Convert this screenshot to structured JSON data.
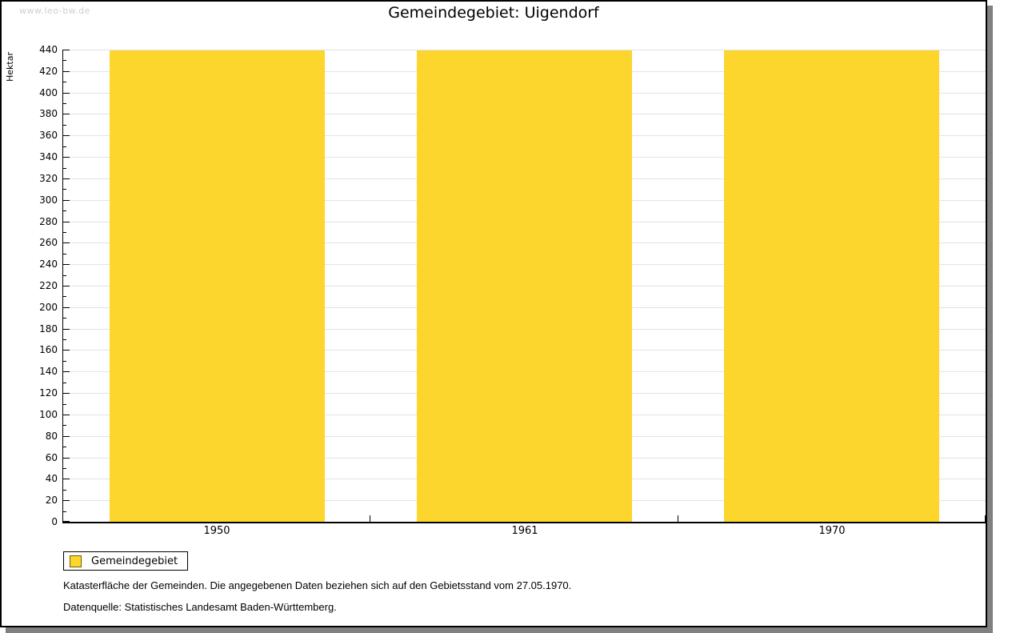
{
  "watermark": "www.leo-bw.de",
  "title": "Gemeindegebiet: Uigendorf",
  "chart_data": {
    "type": "bar",
    "title": "Gemeindegebiet: Uigendorf",
    "categories": [
      "1950",
      "1961",
      "1970"
    ],
    "series": [
      {
        "name": "Gemeindegebiet",
        "values": [
          439,
          439,
          439
        ]
      }
    ],
    "xlabel": "",
    "ylabel": "Hektar",
    "ylim": [
      0,
      440
    ],
    "ytick_step": 20,
    "yminor_step": 10,
    "grid": true,
    "legend_position": "bottom-left",
    "bar_color": "#fcd52d"
  },
  "legend": {
    "items": [
      {
        "label": "Gemeindegebiet",
        "color": "#fcd52d"
      }
    ]
  },
  "footnotes": [
    "Katasterfläche der Gemeinden. Die angegebenen Daten beziehen sich auf den Gebietsstand vom 27.05.1970.",
    "Datenquelle: Statistisches Landesamt Baden-Württemberg."
  ],
  "colors": {
    "bar": "#fcd52d",
    "gridline": "#e3e3e3",
    "axis": "#000000",
    "shadow": "#808080",
    "watermark": "#cfcfcf",
    "background": "#ffffff"
  }
}
